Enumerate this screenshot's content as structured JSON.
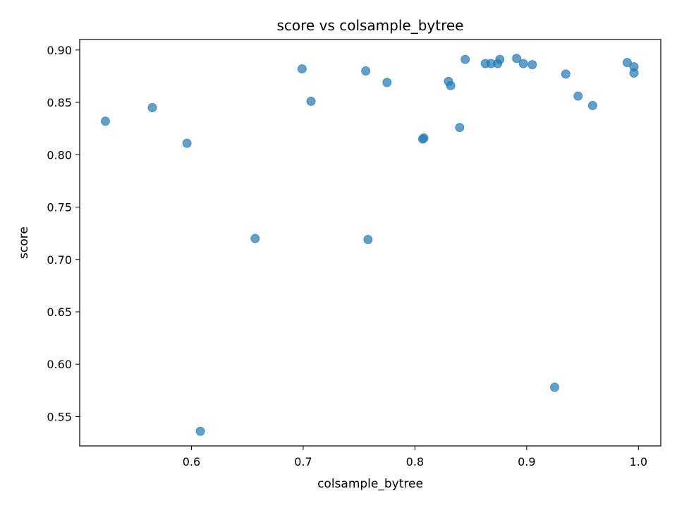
{
  "chart_data": {
    "type": "scatter",
    "title": "score vs colsample_bytree",
    "xlabel": "colsample_bytree",
    "ylabel": "score",
    "xlim": [
      0.5,
      1.02
    ],
    "ylim": [
      0.522,
      0.91
    ],
    "xticks": [
      0.6,
      0.7,
      0.8,
      0.9,
      1.0
    ],
    "xtick_labels": [
      "0.6",
      "0.7",
      "0.8",
      "0.9",
      "1.0"
    ],
    "yticks": [
      0.55,
      0.6,
      0.65,
      0.7,
      0.75,
      0.8,
      0.85,
      0.9
    ],
    "ytick_labels": [
      "0.55",
      "0.60",
      "0.65",
      "0.70",
      "0.75",
      "0.80",
      "0.85",
      "0.90"
    ],
    "grid": false,
    "marker_color": "#1f77b4",
    "points": [
      {
        "x": 0.523,
        "y": 0.832
      },
      {
        "x": 0.565,
        "y": 0.845
      },
      {
        "x": 0.596,
        "y": 0.811
      },
      {
        "x": 0.608,
        "y": 0.536
      },
      {
        "x": 0.657,
        "y": 0.72
      },
      {
        "x": 0.699,
        "y": 0.882
      },
      {
        "x": 0.707,
        "y": 0.851
      },
      {
        "x": 0.756,
        "y": 0.88
      },
      {
        "x": 0.758,
        "y": 0.719
      },
      {
        "x": 0.775,
        "y": 0.869
      },
      {
        "x": 0.807,
        "y": 0.815
      },
      {
        "x": 0.808,
        "y": 0.816
      },
      {
        "x": 0.83,
        "y": 0.87
      },
      {
        "x": 0.832,
        "y": 0.866
      },
      {
        "x": 0.84,
        "y": 0.826
      },
      {
        "x": 0.845,
        "y": 0.891
      },
      {
        "x": 0.863,
        "y": 0.887
      },
      {
        "x": 0.868,
        "y": 0.887
      },
      {
        "x": 0.874,
        "y": 0.887
      },
      {
        "x": 0.876,
        "y": 0.891
      },
      {
        "x": 0.891,
        "y": 0.892
      },
      {
        "x": 0.897,
        "y": 0.887
      },
      {
        "x": 0.905,
        "y": 0.886
      },
      {
        "x": 0.925,
        "y": 0.578
      },
      {
        "x": 0.935,
        "y": 0.877
      },
      {
        "x": 0.946,
        "y": 0.856
      },
      {
        "x": 0.959,
        "y": 0.847
      },
      {
        "x": 0.99,
        "y": 0.888
      },
      {
        "x": 0.996,
        "y": 0.884
      },
      {
        "x": 0.996,
        "y": 0.878
      }
    ]
  }
}
